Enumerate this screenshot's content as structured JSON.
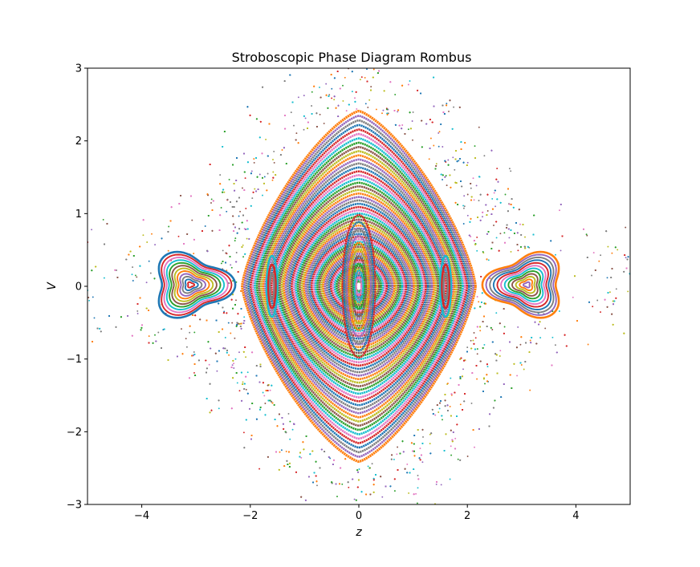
{
  "chart_data": {
    "type": "scatter",
    "title": "Stroboscopic Phase Diagram Rombus",
    "xlabel": "z",
    "ylabel": "V",
    "xlim": [
      -5,
      5
    ],
    "ylim": [
      -3,
      3
    ],
    "xticks": [
      -4,
      -2,
      0,
      2,
      4
    ],
    "yticks": [
      -3,
      -2,
      -1,
      0,
      1,
      2,
      3
    ],
    "xtick_labels": [
      "−4",
      "−2",
      "0",
      "2",
      "4"
    ],
    "ytick_labels": [
      "−3",
      "−2",
      "−1",
      "0",
      "1",
      "2",
      "3"
    ],
    "grid": false,
    "legend": "none",
    "palette": [
      "#1f77b4",
      "#ff7f0e",
      "#2ca02c",
      "#d62728",
      "#9467bd",
      "#8c564b",
      "#e377c2",
      "#7f7f7f",
      "#bcbd22",
      "#17becf"
    ],
    "central_island": {
      "center": [
        0,
        0
      ],
      "outer_half_width_z": 2.12,
      "outer_half_height_V": 2.36,
      "inner_resonance_chain_z": [
        -1.6,
        1.6
      ],
      "core_half_width_z": 0.28,
      "core_half_height_V": 0.95
    },
    "side_islands": [
      {
        "center": [
          -3.1,
          0.02
        ],
        "half_width_z": 0.75,
        "half_height_V": 0.45
      },
      {
        "center": [
          3.1,
          0.02
        ],
        "half_width_z": 0.75,
        "half_height_V": 0.45
      }
    ],
    "chaotic_sea": {
      "V_extent_near_z0": [
        -2.78,
        2.74
      ],
      "V_extent_at_z_edges": [
        -1.3,
        1.3
      ]
    }
  }
}
